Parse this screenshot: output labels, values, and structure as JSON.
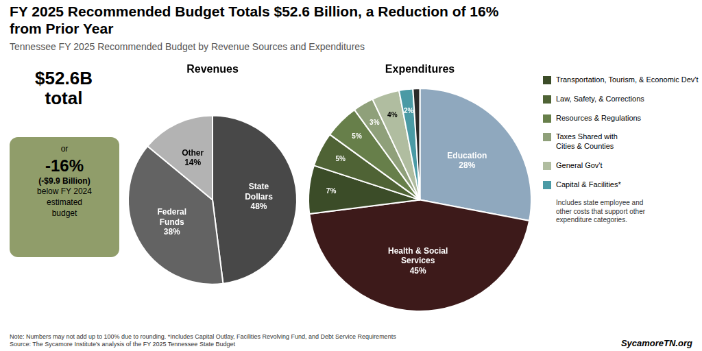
{
  "title": "FY 2025 Recommended Budget Totals $52.6 Billion, a Reduction of 16%\nfrom Prior Year",
  "subtitle": "Tennessee FY 2025 Recommended Budget by Revenue Sources and Expenditures",
  "annotations": [
    {
      "text": "$52.6B\ntotal"
    },
    {
      "text": [
        "or",
        "-16%",
        "(-$9.9 Billion)",
        "below FY 2024",
        "estimated",
        "budget"
      ],
      "color": "#909d6a"
    }
  ],
  "note": "Note: Numbers may not add up to 100% due to rounding. *Includes Capital Outlay, Facilities Revolving Fund, and Debt Service Requirements\nSource: The Sycamore Institute's analysis of the FY 2025 Tennessee State Budget",
  "source": "SycamoreTN.org",
  "chart_data": [
    {
      "type": "pie",
      "title": "Revenues",
      "values": [
        48,
        38,
        14
      ],
      "value_labels": [
        "State\nDollars\n48%",
        "Federal\nFunds\n38%",
        "Other\n14%"
      ],
      "colors": [
        "#484848",
        "#636363",
        "#b3b3b3"
      ],
      "data_labels": true
    },
    {
      "type": "pie",
      "title": "Expenditures",
      "categories": [
        null,
        null,
        "Transportation, Tourism, & Economic Dev't",
        "Law, Safety, & Corrections",
        "Resources & Regulations",
        "Taxes Shared with\nCities & Counties",
        "General Gov't",
        "Capital & Facilities*",
        null
      ],
      "values": [
        28,
        45,
        7,
        5,
        5,
        3,
        4,
        2,
        1
      ],
      "value_labels": [
        "Education\n28%",
        "Health & Social\nServices\n45%",
        "7%",
        "5%",
        "5%",
        "3%",
        "4%",
        "2%",
        null
      ],
      "colors": [
        "#8fa8be",
        "#3d1a1a",
        "#3b4c28",
        "#4f6335",
        "#677f4a",
        "#8fa07a",
        "#b0bda0",
        "#4a9aa5",
        "#2a2a2a"
      ],
      "data_labels": true,
      "annotations": [
        "Includes state employee and\nother costs that support other\nexpenditure categories."
      ]
    }
  ]
}
